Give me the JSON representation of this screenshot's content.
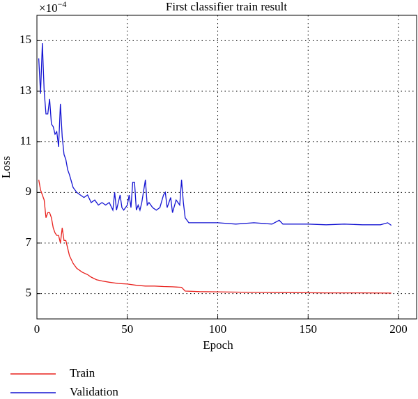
{
  "chart_data": {
    "type": "line",
    "title": "First classifier train result",
    "x_label": "Epoch",
    "y_label": "Loss",
    "y_offset_label": {
      "base": "×10",
      "exponent": "−4"
    },
    "xlim": [
      0,
      210
    ],
    "ylim": [
      4,
      16
    ],
    "xticks": [
      0,
      50,
      100,
      150,
      200
    ],
    "yticks": [
      5,
      7,
      9,
      11,
      13,
      15
    ],
    "grid": true,
    "legend": "below",
    "series": [
      {
        "name": "Train",
        "color": "#e8201c",
        "x": [
          1,
          2,
          3,
          4,
          5,
          6,
          7,
          8,
          9,
          10,
          11,
          12,
          13,
          14,
          15,
          16,
          17,
          18,
          20,
          22,
          25,
          28,
          30,
          33,
          36,
          40,
          45,
          50,
          55,
          60,
          65,
          70,
          75,
          80,
          82,
          90,
          100,
          120,
          140,
          160,
          180,
          196
        ],
        "values": [
          9.5,
          9.1,
          8.9,
          8.7,
          8.0,
          8.2,
          8.2,
          8.0,
          7.6,
          7.4,
          7.3,
          7.3,
          7.0,
          7.6,
          7.1,
          7.1,
          6.8,
          6.5,
          6.2,
          6.0,
          5.85,
          5.75,
          5.65,
          5.55,
          5.5,
          5.45,
          5.4,
          5.38,
          5.33,
          5.3,
          5.3,
          5.28,
          5.27,
          5.25,
          5.1,
          5.08,
          5.07,
          5.05,
          5.04,
          5.03,
          5.03,
          5.02
        ]
      },
      {
        "name": "Validation",
        "color": "#1414d2",
        "x": [
          1,
          2,
          3,
          4,
          5,
          6,
          7,
          8,
          9,
          10,
          11,
          12,
          13,
          14,
          15,
          16,
          17,
          18,
          20,
          22,
          24,
          26,
          28,
          30,
          32,
          34,
          36,
          38,
          40,
          42,
          43,
          44,
          46,
          47,
          48,
          50,
          51,
          52,
          53,
          54,
          55,
          56,
          57,
          58,
          60,
          61,
          62,
          64,
          66,
          68,
          70,
          71,
          72,
          74,
          75,
          77,
          79,
          80,
          81,
          82,
          84,
          90,
          100,
          110,
          120,
          130,
          134,
          136,
          150,
          160,
          170,
          180,
          190,
          194,
          196
        ],
        "values": [
          14.3,
          12.9,
          14.9,
          13.0,
          12.1,
          12.1,
          12.7,
          11.7,
          11.6,
          11.3,
          11.4,
          10.8,
          12.5,
          11.2,
          10.5,
          10.3,
          9.9,
          9.7,
          9.2,
          9.0,
          8.9,
          8.8,
          8.9,
          8.6,
          8.7,
          8.5,
          8.6,
          8.5,
          8.6,
          8.3,
          9.0,
          8.3,
          8.9,
          8.4,
          8.3,
          8.5,
          8.9,
          8.4,
          9.4,
          9.4,
          8.3,
          8.5,
          8.3,
          8.6,
          9.5,
          8.5,
          8.6,
          8.4,
          8.3,
          8.4,
          8.9,
          9.0,
          8.4,
          8.8,
          8.2,
          8.7,
          8.5,
          9.5,
          8.6,
          8.0,
          7.8,
          7.8,
          7.8,
          7.75,
          7.8,
          7.75,
          7.9,
          7.75,
          7.75,
          7.72,
          7.75,
          7.72,
          7.72,
          7.8,
          7.7
        ]
      }
    ]
  }
}
